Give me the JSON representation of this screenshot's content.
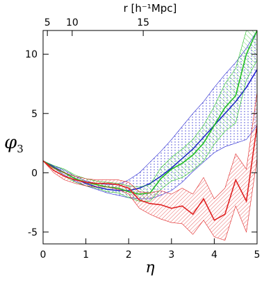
{
  "chart_data": {
    "type": "line",
    "xlabel": "η",
    "ylabel": "φ",
    "ylabel_sub": "3",
    "x2label": "r [h⁻¹Mpc]",
    "x": [
      0,
      0.25,
      0.5,
      0.75,
      1,
      1.25,
      1.5,
      1.75,
      2,
      2.25,
      2.5,
      2.75,
      3,
      3.25,
      3.5,
      3.75,
      4,
      4.25,
      4.5,
      4.75,
      5
    ],
    "xlim": [
      0,
      5
    ],
    "ylim": [
      -6,
      12
    ],
    "xticks": [
      0,
      1,
      2,
      3,
      4,
      5
    ],
    "yticks": [
      -5,
      0,
      5,
      10
    ],
    "x2ticks": [
      {
        "value": 0.1,
        "label": "5"
      },
      {
        "value": 0.68,
        "label": "10"
      },
      {
        "value": 2.34,
        "label": "15"
      }
    ],
    "series": [
      {
        "color": "#2020d0",
        "pattern": "dots",
        "values": [
          1,
          0.5,
          0,
          -0.5,
          -0.9,
          -1.2,
          -1.4,
          -1.5,
          -1.5,
          -1.3,
          -0.9,
          -0.3,
          0.4,
          1.2,
          2.0,
          3.0,
          4.0,
          5.0,
          6.0,
          7.2,
          8.7
        ],
        "upper": [
          1,
          0.6,
          0.2,
          -0.3,
          -0.7,
          -0.9,
          -1.0,
          -1.0,
          -0.6,
          0,
          0.9,
          1.8,
          2.8,
          3.9,
          5,
          6,
          7.2,
          8.3,
          9.3,
          10.5,
          12
        ],
        "lower": [
          1,
          0.4,
          -0.2,
          -0.7,
          -1.1,
          -1.4,
          -1.7,
          -1.9,
          -2.1,
          -2.2,
          -2.2,
          -1.9,
          -1.5,
          -0.8,
          0.1,
          0.9,
          1.7,
          2.2,
          2.5,
          2.8,
          4
        ]
      },
      {
        "color": "#20c020",
        "pattern": "hatch-left",
        "values": [
          1,
          0.4,
          0,
          -0.5,
          -0.8,
          -1.0,
          -1.2,
          -1.3,
          -1.6,
          -1.8,
          -1.7,
          -0.5,
          0.3,
          0.8,
          1.5,
          2.5,
          4,
          5.5,
          6.5,
          10,
          12
        ],
        "upper": [
          1,
          0.6,
          0.3,
          -0.2,
          -0.5,
          -0.7,
          -0.8,
          -0.9,
          -1.1,
          -1.2,
          -1.0,
          0.4,
          1.3,
          2.0,
          2.8,
          4.0,
          5.6,
          7.5,
          8.8,
          12,
          12
        ],
        "lower": [
          1,
          0.2,
          -0.3,
          -0.8,
          -1.1,
          -1.3,
          -1.6,
          -1.7,
          -2.1,
          -2.4,
          -2.4,
          -1.4,
          -0.7,
          -0.4,
          0.2,
          1.0,
          2.4,
          3.5,
          4.2,
          7.8,
          9.5
        ]
      },
      {
        "color": "#e02020",
        "pattern": "hatch-right",
        "values": [
          1,
          0.2,
          -0.3,
          -0.6,
          -0.8,
          -0.9,
          -0.9,
          -1.0,
          -1.3,
          -2.3,
          -2.6,
          -2.7,
          -3.0,
          -2.8,
          -3.5,
          -2.2,
          -4.0,
          -3.5,
          -0.6,
          -2.4,
          4
        ],
        "upper": [
          1,
          0.4,
          0,
          -0.3,
          -0.5,
          -0.6,
          -0.6,
          -0.6,
          -0.8,
          -1.6,
          -1.7,
          -1.5,
          -1.8,
          -1.3,
          -1.8,
          -0.4,
          -2.2,
          -1.3,
          1.6,
          0.3,
          6.8
        ],
        "lower": [
          1,
          0,
          -0.6,
          -0.9,
          -1.1,
          -1.2,
          -1.2,
          -1.4,
          -1.8,
          -3.0,
          -3.5,
          -3.9,
          -4.2,
          -4.3,
          -5.2,
          -4.0,
          -5.4,
          -5.7,
          -2.8,
          -5.0,
          1.2
        ]
      }
    ]
  }
}
